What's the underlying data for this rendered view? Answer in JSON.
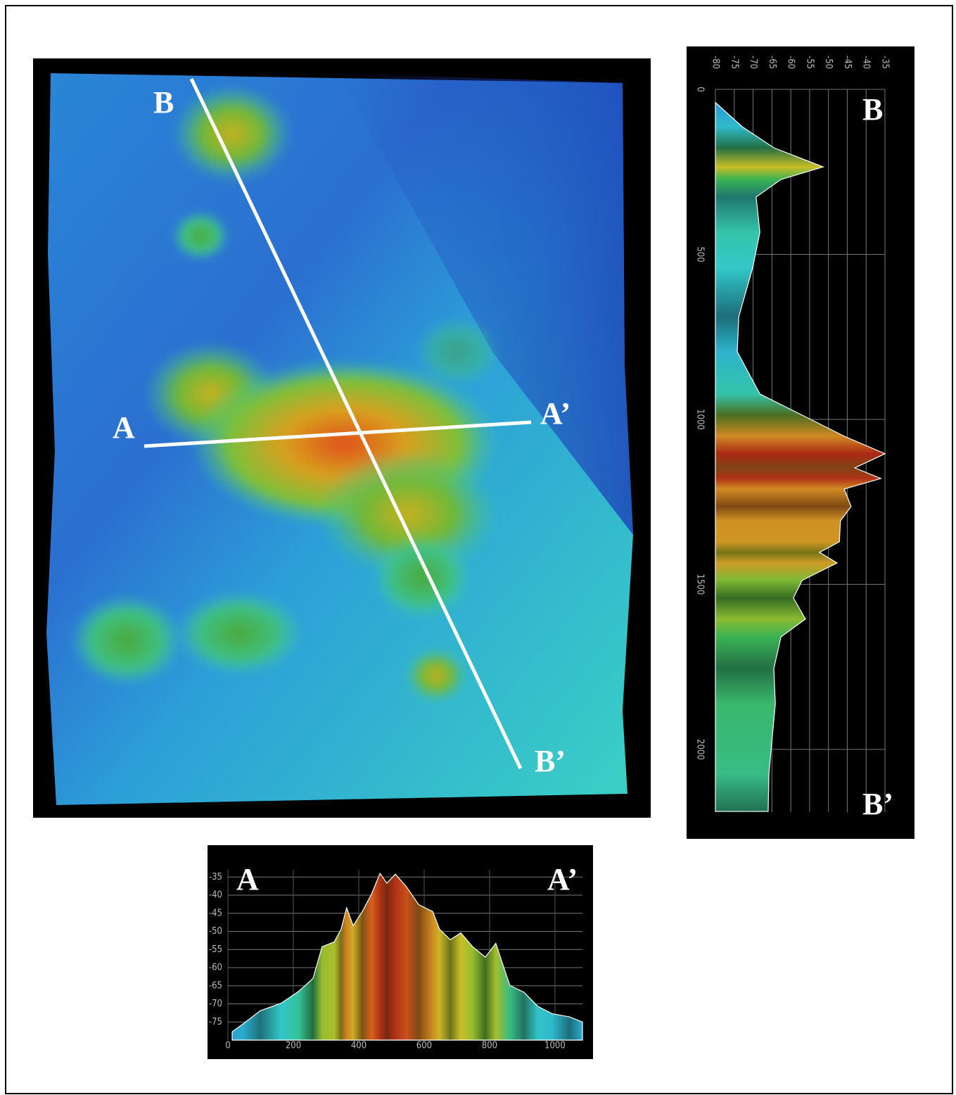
{
  "map": {
    "a_start": "A",
    "a_end": "A’",
    "b_start": "B",
    "b_end": "B’"
  },
  "chart_data": [
    {
      "type": "area",
      "orientation": "vertical",
      "start_label": "B",
      "end_label": "B’",
      "x": [
        40,
        113,
        177,
        235,
        273,
        326,
        433,
        540,
        689,
        795,
        923,
        987,
        1051,
        1104,
        1147,
        1179,
        1211,
        1264,
        1307,
        1371,
        1403,
        1435,
        1488,
        1541,
        1605,
        1659,
        1755,
        1861,
        2074,
        2188
      ],
      "values": [
        -80,
        -72.9,
        -64.5,
        -51.4,
        -62.6,
        -69.2,
        -68.2,
        -70.1,
        -73.8,
        -74.2,
        -68.2,
        -57,
        -45.8,
        -35,
        -43,
        -36.1,
        -45.8,
        -44,
        -46.8,
        -47.1,
        -52.4,
        -47.7,
        -57,
        -59.3,
        -56.1,
        -62.6,
        -64.5,
        -64.1,
        -65.8,
        -66
      ],
      "xlim": [
        0,
        2190
      ],
      "xticks": [
        0,
        500,
        1000,
        1500,
        2000
      ],
      "ylim": [
        -80,
        -35
      ],
      "yticks": [
        -80,
        -75,
        -70,
        -65,
        -60,
        -55,
        -50,
        -45,
        -40,
        -35
      ],
      "grid": true
    },
    {
      "type": "area",
      "orientation": "horizontal",
      "start_label": "A",
      "end_label": "A’",
      "x": [
        13,
        45,
        99,
        163,
        217,
        260,
        288,
        325,
        346,
        363,
        383,
        411,
        439,
        465,
        486,
        512,
        546,
        583,
        626,
        647,
        680,
        712,
        748,
        787,
        819,
        862,
        905,
        948,
        991,
        1045,
        1084
      ],
      "values": [
        -77.7,
        -75.6,
        -71.9,
        -69.8,
        -66.5,
        -63,
        -54.2,
        -52.9,
        -49.4,
        -43.5,
        -48.4,
        -44.5,
        -39.7,
        -34,
        -36.7,
        -34.2,
        -37.7,
        -42.6,
        -44.5,
        -49.4,
        -52.3,
        -50.4,
        -54.2,
        -57.1,
        -53.3,
        -64.9,
        -66.8,
        -70.7,
        -72.7,
        -73.6,
        -75
      ],
      "xlim": [
        0,
        1084
      ],
      "xticks": [
        0,
        200,
        400,
        600,
        800,
        1000
      ],
      "ylim": [
        -80,
        -33
      ],
      "yticks": [
        -35,
        -40,
        -45,
        -50,
        -55,
        -60,
        -65,
        -70,
        -75
      ],
      "grid": true
    }
  ]
}
